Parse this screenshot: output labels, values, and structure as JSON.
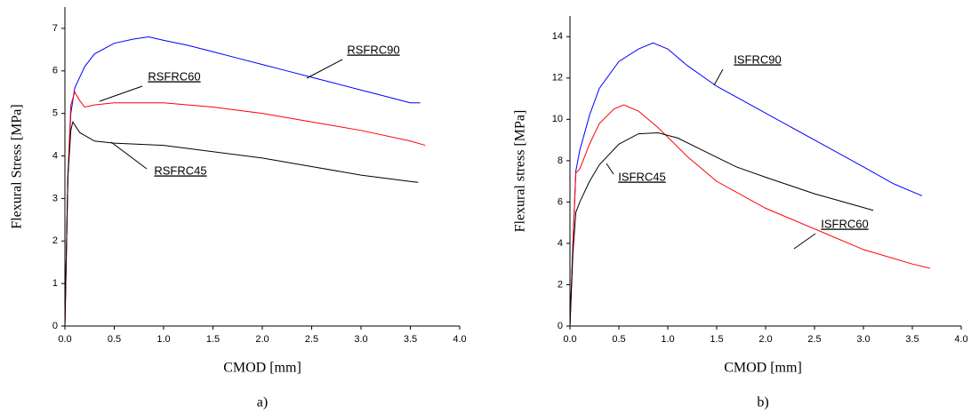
{
  "chart_data": [
    {
      "type": "line",
      "caption": "a)",
      "x_label": "CMOD [mm]",
      "y_label": "Flexural Stress [MPa]",
      "xlim": [
        0,
        4
      ],
      "ylim": [
        0,
        7.5
      ],
      "xticks": [
        {
          "value": 0,
          "label": "0.0"
        },
        {
          "value": 0.5,
          "label": "0.5"
        },
        {
          "value": 1,
          "label": "1.0"
        },
        {
          "value": 1.5,
          "label": "1.5"
        },
        {
          "value": 2,
          "label": "2.0"
        },
        {
          "value": 2.5,
          "label": "2.5"
        },
        {
          "value": 3,
          "label": "3.0"
        },
        {
          "value": 3.5,
          "label": "3.5"
        },
        {
          "value": 4,
          "label": "4.0"
        }
      ],
      "yticks": [
        0,
        1,
        2,
        3,
        4,
        5,
        6,
        7
      ],
      "series": [
        {
          "name": "RSFRC90",
          "color": "#0000ff",
          "x": [
            0,
            0.03,
            0.06,
            0.1,
            0.2,
            0.3,
            0.5,
            0.7,
            0.85,
            1.0,
            1.25,
            1.5,
            1.75,
            2.0,
            2.25,
            2.5,
            2.75,
            3.0,
            3.25,
            3.5,
            3.6
          ],
          "values": [
            0,
            3.5,
            5,
            5.6,
            6.1,
            6.4,
            6.65,
            6.75,
            6.8,
            6.72,
            6.6,
            6.45,
            6.3,
            6.15,
            6.0,
            5.85,
            5.7,
            5.55,
            5.4,
            5.25,
            5.25
          ]
        },
        {
          "name": "RSFRC60",
          "color": "#ff0000",
          "x": [
            0,
            0.03,
            0.06,
            0.1,
            0.15,
            0.2,
            0.3,
            0.5,
            1.0,
            1.5,
            2.0,
            2.5,
            3.0,
            3.5,
            3.65
          ],
          "values": [
            0,
            3.5,
            5.2,
            5.5,
            5.3,
            5.15,
            5.2,
            5.25,
            5.25,
            5.15,
            5.0,
            4.8,
            4.6,
            4.35,
            4.25
          ]
        },
        {
          "name": "RSFRC45",
          "color": "#000000",
          "x": [
            0,
            0.03,
            0.06,
            0.08,
            0.15,
            0.3,
            0.5,
            1.0,
            1.5,
            2.0,
            2.5,
            3.0,
            3.5,
            3.58
          ],
          "values": [
            0,
            3.5,
            4.6,
            4.8,
            4.55,
            4.35,
            4.3,
            4.25,
            4.1,
            3.95,
            3.75,
            3.55,
            3.4,
            3.38
          ]
        }
      ]
    },
    {
      "type": "line",
      "caption": "b)",
      "x_label": "CMOD [mm]",
      "y_label": "Flexural stress [MPa]",
      "xlim": [
        0,
        4
      ],
      "ylim": [
        0,
        15
      ],
      "xticks": [
        {
          "value": 0,
          "label": "0.0"
        },
        {
          "value": 0.5,
          "label": "0.5"
        },
        {
          "value": 1,
          "label": "1.0"
        },
        {
          "value": 1.5,
          "label": "1.5"
        },
        {
          "value": 2,
          "label": "2.0"
        },
        {
          "value": 2.5,
          "label": "2.5"
        },
        {
          "value": 3,
          "label": "3.0"
        },
        {
          "value": 3.5,
          "label": "3.5"
        },
        {
          "value": 4,
          "label": "4.0"
        }
      ],
      "yticks": [
        0,
        2,
        4,
        6,
        8,
        10,
        12,
        14
      ],
      "series": [
        {
          "name": "ISFRC90",
          "color": "#0000ff",
          "x": [
            0,
            0.03,
            0.06,
            0.1,
            0.2,
            0.3,
            0.5,
            0.7,
            0.85,
            1.0,
            1.2,
            1.5,
            2.0,
            2.5,
            3.0,
            3.3,
            3.6
          ],
          "values": [
            0,
            4,
            7.5,
            8.5,
            10.2,
            11.5,
            12.8,
            13.4,
            13.7,
            13.4,
            12.6,
            11.6,
            10.3,
            9.0,
            7.7,
            6.9,
            6.3
          ]
        },
        {
          "name": "ISFRC60",
          "color": "#ff0000",
          "x": [
            0,
            0.03,
            0.06,
            0.1,
            0.2,
            0.3,
            0.45,
            0.55,
            0.7,
            0.9,
            1.2,
            1.5,
            2.0,
            2.5,
            3.0,
            3.5,
            3.68
          ],
          "values": [
            0,
            4,
            7.4,
            7.6,
            8.8,
            9.8,
            10.5,
            10.7,
            10.4,
            9.6,
            8.2,
            7.0,
            5.7,
            4.7,
            3.7,
            3.0,
            2.8
          ]
        },
        {
          "name": "ISFRC45",
          "color": "#000000",
          "x": [
            0,
            0.03,
            0.06,
            0.1,
            0.2,
            0.3,
            0.5,
            0.7,
            0.9,
            1.1,
            1.4,
            1.7,
            2.0,
            2.5,
            2.8,
            3.1
          ],
          "values": [
            0,
            3.5,
            5.5,
            6.0,
            7.0,
            7.8,
            8.8,
            9.3,
            9.35,
            9.1,
            8.4,
            7.7,
            7.2,
            6.4,
            6.0,
            5.6
          ]
        }
      ]
    }
  ]
}
